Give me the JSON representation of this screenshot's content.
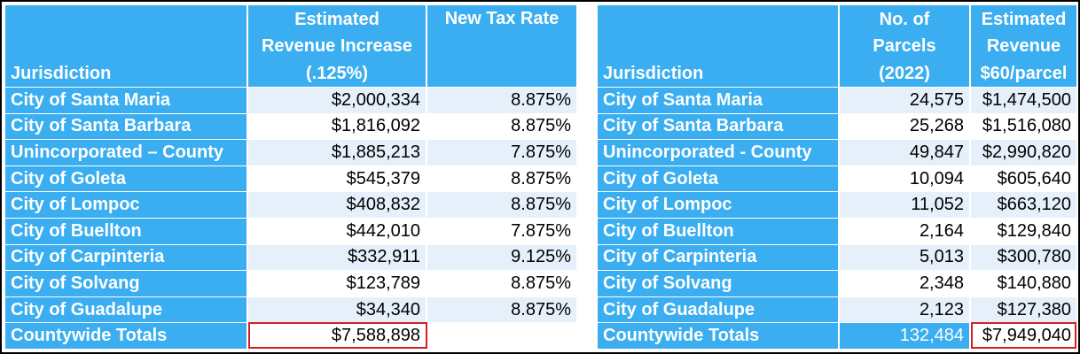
{
  "left_table": {
    "headers": {
      "jurisdiction": "Jurisdiction",
      "revenue_line1": "Estimated",
      "revenue_line2": "Revenue Increase",
      "revenue_line3": "(.125%)",
      "rate": "New Tax Rate"
    },
    "rows": [
      {
        "name": "City of Santa Maria",
        "revenue": "$2,000,334",
        "rate": "8.875%"
      },
      {
        "name": "City of Santa Barbara",
        "revenue": "$1,816,092",
        "rate": "8.875%"
      },
      {
        "name": "Unincorporated – County",
        "revenue": "$1,885,213",
        "rate": "7.875%"
      },
      {
        "name": "City of Goleta",
        "revenue": "$545,379",
        "rate": "8.875%"
      },
      {
        "name": "City of Lompoc",
        "revenue": "$408,832",
        "rate": "8.875%"
      },
      {
        "name": "City of Buellton",
        "revenue": "$442,010",
        "rate": "7.875%"
      },
      {
        "name": "City of Carpinteria",
        "revenue": "$332,911",
        "rate": "9.125%"
      },
      {
        "name": "City of Solvang",
        "revenue": "$123,789",
        "rate": "8.875%"
      },
      {
        "name": "City of Guadalupe",
        "revenue": "$34,340",
        "rate": "8.875%"
      }
    ],
    "total": {
      "name": "Countywide Totals",
      "revenue": "$7,588,898"
    }
  },
  "right_table": {
    "headers": {
      "jurisdiction": "Jurisdiction",
      "parcels_line1": "No. of",
      "parcels_line2": "Parcels",
      "parcels_line3": "(2022)",
      "revenue_line1": "Estimated",
      "revenue_line2": "Revenue",
      "revenue_line3": "$60/parcel"
    },
    "rows": [
      {
        "name": "City of Santa Maria",
        "parcels": "24,575",
        "revenue": "$1,474,500"
      },
      {
        "name": "City of Santa Barbara",
        "parcels": "25,268",
        "revenue": "$1,516,080"
      },
      {
        "name": "Unincorporated - County",
        "parcels": "49,847",
        "revenue": "$2,990,820"
      },
      {
        "name": "City of Goleta",
        "parcels": "10,094",
        "revenue": "$605,640"
      },
      {
        "name": "City of Lompoc",
        "parcels": "11,052",
        "revenue": "$663,120"
      },
      {
        "name": "City of Buellton",
        "parcels": "2,164",
        "revenue": "$129,840"
      },
      {
        "name": "City of Carpinteria",
        "parcels": "5,013",
        "revenue": "$300,780"
      },
      {
        "name": "City of Solvang",
        "parcels": "2,348",
        "revenue": "$140,880"
      },
      {
        "name": "City of Guadalupe",
        "parcels": "2,123",
        "revenue": "$127,380"
      }
    ],
    "total": {
      "name": "Countywide Totals",
      "parcels": "132,484",
      "revenue": "$7,949,040"
    }
  },
  "colors": {
    "header_blue": "#3aaef0",
    "stripe": "#e6f0fa",
    "highlight_red": "#d42020"
  }
}
